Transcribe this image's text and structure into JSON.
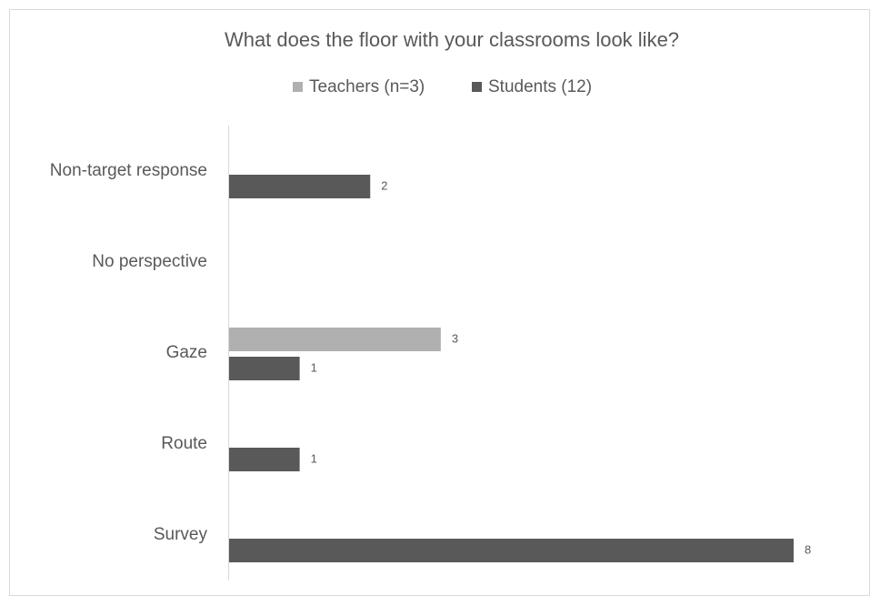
{
  "chart_data": {
    "type": "hbar",
    "title": "What does the floor with your classrooms look like?",
    "categories": [
      "Non-target response",
      "No perspective",
      "Gaze",
      "Route",
      "Survey"
    ],
    "series": [
      {
        "name": "Teachers (n=3)",
        "color": "#b0b0b0",
        "values": [
          null,
          null,
          3,
          null,
          null
        ]
      },
      {
        "name": "Students (12)",
        "color": "#595959",
        "values": [
          2,
          null,
          1,
          1,
          8
        ]
      }
    ],
    "legend": "top"
  }
}
